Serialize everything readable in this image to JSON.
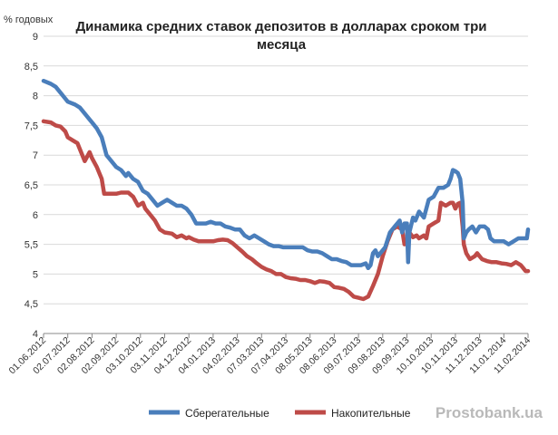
{
  "chart_data": {
    "type": "line",
    "title": [
      "Динамика средних ставок депозитов в долларах сроком три",
      "месяца"
    ],
    "ylabel": "% годовых",
    "ylim": [
      4,
      9
    ],
    "yticks": [
      "4",
      "4,5",
      "5",
      "5,5",
      "6",
      "6,5",
      "7",
      "7,5",
      "8",
      "8,5",
      "9"
    ],
    "xticks": [
      "01.06.2012",
      "02.07.2012",
      "02.08.2012",
      "02.09.2012",
      "03.10.2012",
      "03.11.2012",
      "04.12.2012",
      "04.01.2013",
      "04.02.2013",
      "07.03.2013",
      "07.04.2013",
      "08.05.2013",
      "08.06.2013",
      "09.07.2013",
      "09.08.2013",
      "09.09.2013",
      "10.10.2013",
      "10.11.2013",
      "11.12.2013",
      "11.01.2014",
      "11.02.2014"
    ],
    "grid": "horizontal",
    "legend_position": "bottom",
    "series": [
      {
        "name": "Сберегательные",
        "color": "#4a7ebb",
        "points": [
          [
            0,
            8.25
          ],
          [
            0.3,
            8.2
          ],
          [
            0.5,
            8.15
          ],
          [
            0.7,
            8.05
          ],
          [
            0.9,
            7.95
          ],
          [
            1.0,
            7.9
          ],
          [
            1.3,
            7.85
          ],
          [
            1.5,
            7.8
          ],
          [
            1.7,
            7.7
          ],
          [
            1.9,
            7.6
          ],
          [
            2.0,
            7.55
          ],
          [
            2.2,
            7.45
          ],
          [
            2.4,
            7.3
          ],
          [
            2.6,
            7.0
          ],
          [
            2.8,
            6.9
          ],
          [
            3.0,
            6.8
          ],
          [
            3.2,
            6.75
          ],
          [
            3.4,
            6.65
          ],
          [
            3.5,
            6.7
          ],
          [
            3.7,
            6.6
          ],
          [
            3.9,
            6.55
          ],
          [
            4.1,
            6.4
          ],
          [
            4.3,
            6.35
          ],
          [
            4.5,
            6.25
          ],
          [
            4.7,
            6.15
          ],
          [
            4.9,
            6.2
          ],
          [
            5.1,
            6.25
          ],
          [
            5.3,
            6.2
          ],
          [
            5.5,
            6.15
          ],
          [
            5.7,
            6.15
          ],
          [
            5.9,
            6.1
          ],
          [
            6.1,
            6.0
          ],
          [
            6.3,
            5.85
          ],
          [
            6.5,
            5.85
          ],
          [
            6.7,
            5.85
          ],
          [
            6.9,
            5.88
          ],
          [
            7.1,
            5.85
          ],
          [
            7.3,
            5.85
          ],
          [
            7.5,
            5.8
          ],
          [
            7.7,
            5.78
          ],
          [
            7.9,
            5.75
          ],
          [
            8.1,
            5.75
          ],
          [
            8.3,
            5.65
          ],
          [
            8.5,
            5.6
          ],
          [
            8.7,
            5.65
          ],
          [
            8.9,
            5.6
          ],
          [
            9.1,
            5.55
          ],
          [
            9.3,
            5.5
          ],
          [
            9.5,
            5.47
          ],
          [
            9.7,
            5.47
          ],
          [
            9.9,
            5.45
          ],
          [
            10.1,
            5.45
          ],
          [
            10.3,
            5.45
          ],
          [
            10.5,
            5.45
          ],
          [
            10.7,
            5.45
          ],
          [
            10.9,
            5.4
          ],
          [
            11.1,
            5.38
          ],
          [
            11.3,
            5.38
          ],
          [
            11.5,
            5.35
          ],
          [
            11.7,
            5.3
          ],
          [
            11.9,
            5.25
          ],
          [
            12.1,
            5.25
          ],
          [
            12.3,
            5.22
          ],
          [
            12.5,
            5.2
          ],
          [
            12.7,
            5.15
          ],
          [
            12.9,
            5.15
          ],
          [
            13.1,
            5.15
          ],
          [
            13.3,
            5.18
          ],
          [
            13.4,
            5.1
          ],
          [
            13.5,
            5.15
          ],
          [
            13.6,
            5.35
          ],
          [
            13.7,
            5.4
          ],
          [
            13.8,
            5.3
          ],
          [
            13.9,
            5.35
          ],
          [
            14.1,
            5.45
          ],
          [
            14.3,
            5.7
          ],
          [
            14.5,
            5.8
          ],
          [
            14.7,
            5.9
          ],
          [
            14.8,
            5.7
          ],
          [
            14.9,
            5.85
          ],
          [
            15.0,
            5.85
          ],
          [
            15.05,
            5.2
          ],
          [
            15.1,
            5.7
          ],
          [
            15.25,
            5.95
          ],
          [
            15.35,
            5.9
          ],
          [
            15.5,
            6.05
          ],
          [
            15.7,
            5.95
          ],
          [
            15.8,
            6.1
          ],
          [
            15.9,
            6.25
          ],
          [
            16.1,
            6.3
          ],
          [
            16.3,
            6.45
          ],
          [
            16.5,
            6.45
          ],
          [
            16.7,
            6.5
          ],
          [
            16.8,
            6.6
          ],
          [
            16.9,
            6.75
          ],
          [
            17.0,
            6.73
          ],
          [
            17.1,
            6.7
          ],
          [
            17.2,
            6.6
          ],
          [
            17.3,
            6.2
          ],
          [
            17.35,
            5.6
          ],
          [
            17.45,
            5.7
          ],
          [
            17.55,
            5.75
          ],
          [
            17.7,
            5.8
          ],
          [
            17.85,
            5.7
          ],
          [
            18.0,
            5.8
          ],
          [
            18.2,
            5.8
          ],
          [
            18.35,
            5.75
          ],
          [
            18.45,
            5.6
          ],
          [
            18.6,
            5.55
          ],
          [
            18.8,
            5.55
          ],
          [
            19.0,
            5.55
          ],
          [
            19.2,
            5.5
          ],
          [
            19.4,
            5.55
          ],
          [
            19.6,
            5.6
          ],
          [
            19.8,
            5.6
          ],
          [
            19.95,
            5.6
          ],
          [
            20.0,
            5.75
          ]
        ]
      },
      {
        "name": "Накопительные",
        "color": "#be4b48",
        "points": [
          [
            0,
            7.57
          ],
          [
            0.3,
            7.55
          ],
          [
            0.5,
            7.5
          ],
          [
            0.7,
            7.48
          ],
          [
            0.9,
            7.4
          ],
          [
            1.0,
            7.3
          ],
          [
            1.2,
            7.25
          ],
          [
            1.4,
            7.2
          ],
          [
            1.6,
            7.0
          ],
          [
            1.7,
            6.9
          ],
          [
            1.9,
            7.05
          ],
          [
            2.0,
            6.95
          ],
          [
            2.2,
            6.8
          ],
          [
            2.4,
            6.6
          ],
          [
            2.5,
            6.35
          ],
          [
            2.8,
            6.35
          ],
          [
            3.0,
            6.35
          ],
          [
            3.2,
            6.37
          ],
          [
            3.5,
            6.37
          ],
          [
            3.7,
            6.3
          ],
          [
            3.9,
            6.15
          ],
          [
            4.1,
            6.2
          ],
          [
            4.2,
            6.1
          ],
          [
            4.4,
            6.0
          ],
          [
            4.6,
            5.9
          ],
          [
            4.8,
            5.75
          ],
          [
            5.0,
            5.7
          ],
          [
            5.3,
            5.68
          ],
          [
            5.5,
            5.62
          ],
          [
            5.7,
            5.65
          ],
          [
            5.9,
            5.6
          ],
          [
            6.0,
            5.62
          ],
          [
            6.2,
            5.58
          ],
          [
            6.4,
            5.55
          ],
          [
            6.6,
            5.55
          ],
          [
            6.8,
            5.55
          ],
          [
            7.0,
            5.55
          ],
          [
            7.2,
            5.57
          ],
          [
            7.4,
            5.58
          ],
          [
            7.6,
            5.57
          ],
          [
            7.8,
            5.52
          ],
          [
            8.0,
            5.45
          ],
          [
            8.2,
            5.38
          ],
          [
            8.4,
            5.3
          ],
          [
            8.6,
            5.25
          ],
          [
            8.8,
            5.18
          ],
          [
            9.0,
            5.12
          ],
          [
            9.2,
            5.08
          ],
          [
            9.4,
            5.05
          ],
          [
            9.6,
            5.0
          ],
          [
            9.8,
            5.0
          ],
          [
            10.0,
            4.95
          ],
          [
            10.2,
            4.93
          ],
          [
            10.4,
            4.92
          ],
          [
            10.6,
            4.9
          ],
          [
            10.8,
            4.9
          ],
          [
            11.0,
            4.88
          ],
          [
            11.2,
            4.85
          ],
          [
            11.4,
            4.88
          ],
          [
            11.6,
            4.87
          ],
          [
            11.8,
            4.85
          ],
          [
            12.0,
            4.78
          ],
          [
            12.2,
            4.77
          ],
          [
            12.4,
            4.75
          ],
          [
            12.6,
            4.7
          ],
          [
            12.8,
            4.62
          ],
          [
            13.0,
            4.6
          ],
          [
            13.2,
            4.58
          ],
          [
            13.4,
            4.62
          ],
          [
            13.6,
            4.8
          ],
          [
            13.8,
            5.0
          ],
          [
            14.0,
            5.3
          ],
          [
            14.2,
            5.55
          ],
          [
            14.4,
            5.75
          ],
          [
            14.6,
            5.8
          ],
          [
            14.8,
            5.75
          ],
          [
            14.9,
            5.5
          ],
          [
            15.0,
            5.55
          ],
          [
            15.1,
            5.7
          ],
          [
            15.25,
            5.62
          ],
          [
            15.4,
            5.65
          ],
          [
            15.5,
            5.6
          ],
          [
            15.7,
            5.65
          ],
          [
            15.8,
            5.6
          ],
          [
            15.9,
            5.8
          ],
          [
            16.1,
            5.85
          ],
          [
            16.3,
            5.9
          ],
          [
            16.4,
            6.2
          ],
          [
            16.6,
            6.15
          ],
          [
            16.8,
            6.2
          ],
          [
            16.9,
            6.2
          ],
          [
            17.0,
            6.1
          ],
          [
            17.1,
            6.18
          ],
          [
            17.2,
            6.2
          ],
          [
            17.3,
            5.8
          ],
          [
            17.35,
            5.5
          ],
          [
            17.45,
            5.35
          ],
          [
            17.6,
            5.25
          ],
          [
            17.8,
            5.3
          ],
          [
            17.9,
            5.35
          ],
          [
            18.1,
            5.25
          ],
          [
            18.3,
            5.22
          ],
          [
            18.5,
            5.2
          ],
          [
            18.7,
            5.2
          ],
          [
            18.9,
            5.18
          ],
          [
            19.1,
            5.17
          ],
          [
            19.3,
            5.15
          ],
          [
            19.5,
            5.2
          ],
          [
            19.7,
            5.15
          ],
          [
            19.8,
            5.1
          ],
          [
            19.9,
            5.05
          ],
          [
            20.0,
            5.05
          ]
        ]
      }
    ],
    "watermark": "Prostobank.ua"
  }
}
